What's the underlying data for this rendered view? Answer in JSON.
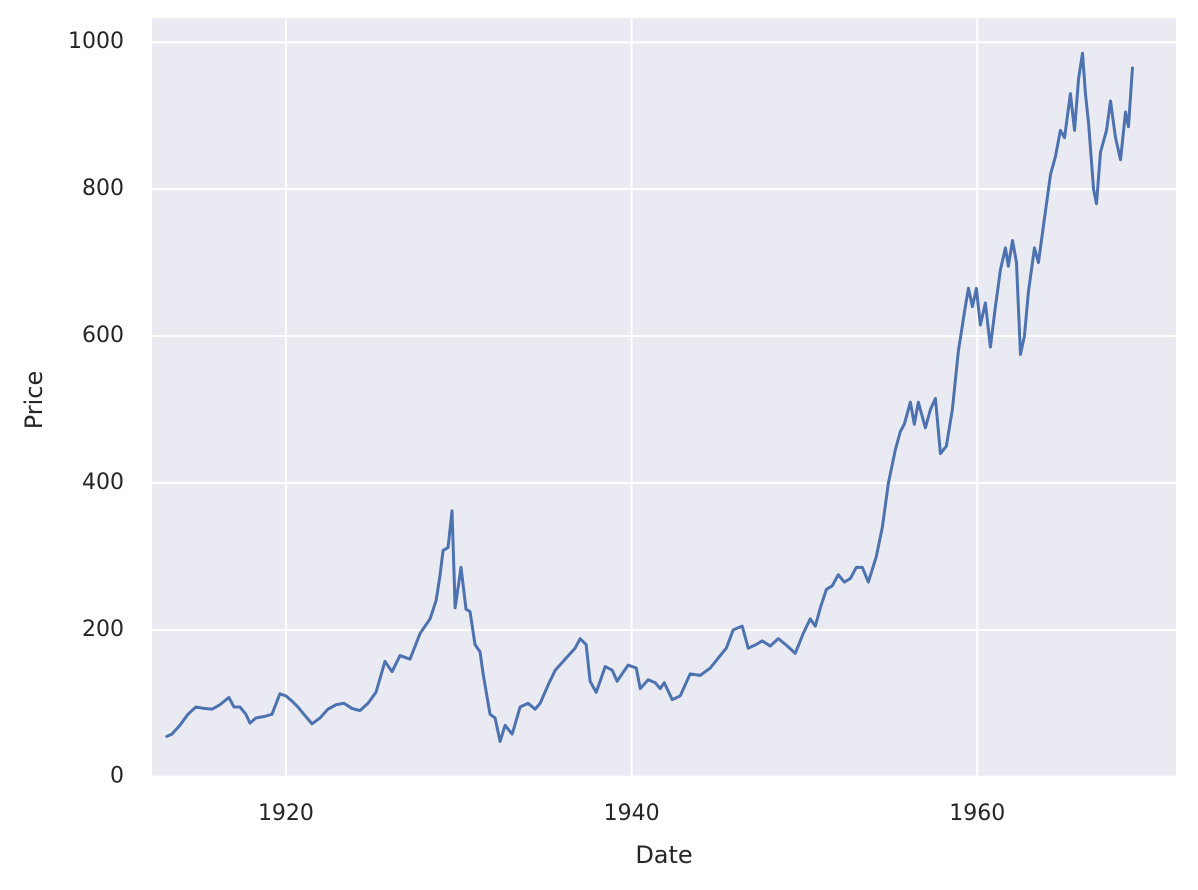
{
  "chart_data": {
    "type": "line",
    "xlabel": "Date",
    "ylabel": "Price",
    "color": "#4c72b0",
    "grid": true,
    "xlim": [
      1912.25,
      1971.5
    ],
    "ylim": [
      1,
      1033
    ],
    "xticks": [
      1920,
      1940,
      1960
    ],
    "yticks": [
      0,
      200,
      400,
      600,
      800,
      1000
    ],
    "x": [
      1913.11,
      1913.4,
      1913.86,
      1914.33,
      1914.79,
      1915.25,
      1915.72,
      1916.18,
      1916.7,
      1916.99,
      1917.34,
      1917.68,
      1917.92,
      1918.26,
      1918.73,
      1919.19,
      1919.65,
      1920.0,
      1920.35,
      1920.69,
      1921.04,
      1921.51,
      1921.97,
      1922.43,
      1922.9,
      1923.36,
      1923.82,
      1924.28,
      1924.75,
      1925.21,
      1925.73,
      1926.14,
      1926.6,
      1927.18,
      1927.76,
      1928.34,
      1928.69,
      1928.92,
      1929.09,
      1929.38,
      1929.61,
      1929.79,
      1930.13,
      1930.42,
      1930.65,
      1930.94,
      1931.23,
      1931.41,
      1931.81,
      1932.1,
      1932.39,
      1932.68,
      1933.09,
      1933.55,
      1934.01,
      1934.42,
      1934.71,
      1935.17,
      1935.58,
      1936.15,
      1936.73,
      1937.02,
      1937.37,
      1937.6,
      1937.95,
      1938.18,
      1938.47,
      1938.88,
      1939.16,
      1939.45,
      1939.8,
      1940.27,
      1940.5,
      1940.96,
      1941.37,
      1941.65,
      1941.89,
      1942.35,
      1942.81,
      1943.39,
      1943.97,
      1944.55,
      1945.13,
      1945.48,
      1945.88,
      1946.4,
      1946.75,
      1947.21,
      1947.56,
      1948.02,
      1948.49,
      1949.01,
      1949.47,
      1949.93,
      1950.34,
      1950.63,
      1950.92,
      1951.27,
      1951.61,
      1951.96,
      1952.31,
      1952.66,
      1953.0,
      1953.35,
      1953.7,
      1954.16,
      1954.51,
      1954.86,
      1955.26,
      1955.55,
      1955.78,
      1956.13,
      1956.36,
      1956.59,
      1957.0,
      1957.29,
      1957.58,
      1957.87,
      1958.21,
      1958.56,
      1958.91,
      1959.31,
      1959.49,
      1959.72,
      1959.95,
      1960.18,
      1960.47,
      1960.76,
      1961.05,
      1961.34,
      1961.63,
      1961.8,
      1962.04,
      1962.27,
      1962.5,
      1962.73,
      1962.96,
      1963.31,
      1963.54,
      1963.83,
      1964.24,
      1964.53,
      1964.81,
      1965.05,
      1965.39,
      1965.63,
      1965.86,
      1966.09,
      1966.26,
      1966.44,
      1966.73,
      1966.9,
      1967.13,
      1967.48,
      1967.71,
      1968.0,
      1968.29,
      1968.58,
      1968.75,
      1968.98
    ],
    "values": [
      55,
      58,
      70,
      85,
      95,
      93,
      92,
      98,
      108,
      95,
      95,
      85,
      73,
      80,
      82,
      85,
      113,
      110,
      103,
      95,
      85,
      72,
      80,
      92,
      98,
      100,
      93,
      90,
      100,
      115,
      157,
      143,
      165,
      160,
      195,
      215,
      240,
      275,
      308,
      312,
      362,
      230,
      285,
      228,
      225,
      180,
      170,
      140,
      85,
      80,
      48,
      70,
      58,
      95,
      100,
      92,
      100,
      125,
      145,
      160,
      175,
      188,
      180,
      130,
      115,
      130,
      150,
      145,
      130,
      140,
      152,
      148,
      120,
      132,
      128,
      120,
      128,
      105,
      110,
      140,
      138,
      148,
      165,
      175,
      200,
      205,
      175,
      180,
      185,
      178,
      188,
      178,
      168,
      195,
      215,
      205,
      230,
      255,
      260,
      275,
      265,
      270,
      285,
      285,
      265,
      300,
      340,
      400,
      445,
      470,
      480,
      510,
      480,
      510,
      475,
      500,
      515,
      440,
      450,
      500,
      580,
      640,
      665,
      640,
      665,
      615,
      645,
      585,
      640,
      690,
      720,
      695,
      730,
      700,
      575,
      600,
      660,
      720,
      700,
      750,
      820,
      845,
      880,
      870,
      930,
      880,
      950,
      985,
      930,
      890,
      800,
      780,
      850,
      880,
      920,
      870,
      840,
      905,
      885,
      965
    ]
  }
}
